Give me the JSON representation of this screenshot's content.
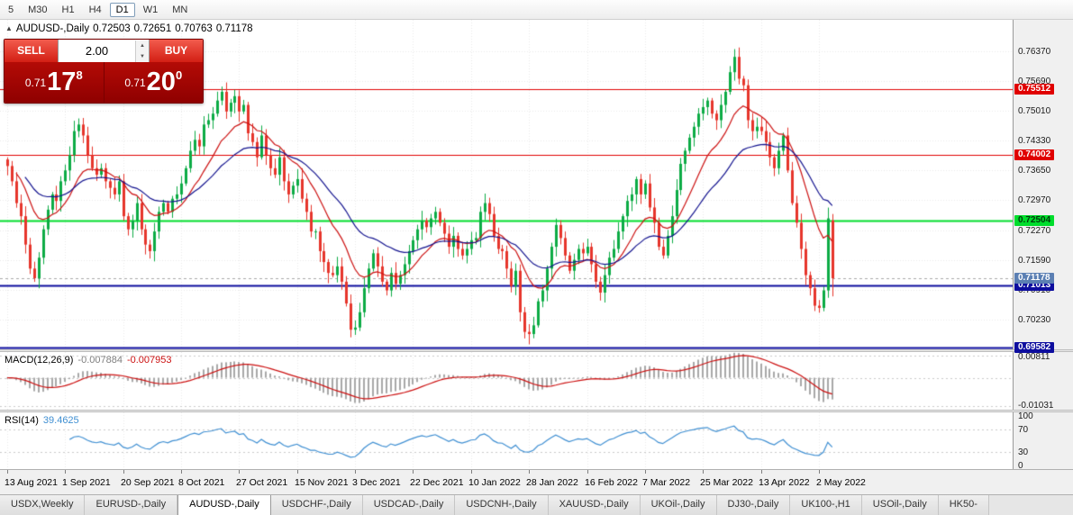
{
  "icons": {
    "collapse": "▲",
    "spin_up": "▲",
    "spin_down": "▼"
  },
  "toolbar": {
    "timeframes": [
      "5",
      "M30",
      "H1",
      "H4",
      "D1",
      "W1",
      "MN"
    ],
    "active": "D1"
  },
  "chart_header": {
    "symbol": "AUDUSD-,Daily",
    "open": "0.72503",
    "high": "0.72651",
    "low": "0.70763",
    "close": "0.71178"
  },
  "trade_panel": {
    "sell_label": "SELL",
    "buy_label": "BUY",
    "volume": "2.00",
    "bid": {
      "prefix": "0.71",
      "big": "17",
      "sup": "8"
    },
    "ask": {
      "prefix": "0.71",
      "big": "20",
      "sup": "0"
    }
  },
  "price_axis": {
    "ticks": [
      {
        "label": "0.76370",
        "value": 0.7637
      },
      {
        "label": "0.75690",
        "value": 0.7569
      },
      {
        "label": "0.75010",
        "value": 0.7501
      },
      {
        "label": "0.74330",
        "value": 0.7433
      },
      {
        "label": "0.73650",
        "value": 0.7365
      },
      {
        "label": "0.72970",
        "value": 0.7297
      },
      {
        "label": "0.72270",
        "value": 0.7227
      },
      {
        "label": "0.71590",
        "value": 0.7159
      },
      {
        "label": "0.70910",
        "value": 0.7091
      },
      {
        "label": "0.70230",
        "value": 0.7023
      }
    ],
    "current_price_marker": {
      "label": "0.71178",
      "value": 0.71178,
      "bg": "#5b7fb3",
      "fg": "#ffffff"
    }
  },
  "macd_pane": {
    "label": "MACD(12,26,9)",
    "value1": "-0.007884",
    "value2": "-0.007953",
    "axis_labels": [
      {
        "label": "0.00811",
        "value": 0.00811
      },
      {
        "label": "-0.01031",
        "value": -0.01031
      }
    ]
  },
  "rsi_pane": {
    "label": "RSI(14)",
    "value": "39.4625",
    "axis_labels": [
      {
        "label": "100",
        "value": 100
      },
      {
        "label": "70",
        "value": 70
      },
      {
        "label": "30",
        "value": 30
      },
      {
        "label": "0",
        "value": 0
      }
    ],
    "levels": [
      70,
      30
    ]
  },
  "date_axis": [
    "13 Aug 2021",
    "1 Sep 2021",
    "20 Sep 2021",
    "8 Oct 2021",
    "27 Oct 2021",
    "15 Nov 2021",
    "3 Dec 2021",
    "22 Dec 2021",
    "10 Jan 2022",
    "28 Jan 2022",
    "16 Feb 2022",
    "7 Mar 2022",
    "25 Mar 2022",
    "13 Apr 2022",
    "2 May 2022"
  ],
  "tabs": {
    "items": [
      "USDX,Weekly",
      "EURUSD-,Daily",
      "AUDUSD-,Daily",
      "USDCHF-,Daily",
      "USDCAD-,Daily",
      "USDCNH-,Daily",
      "XAUUSD-,Daily",
      "UKOil-,Daily",
      "DJ30-,Daily",
      "UK100-,H1",
      "USOil-,Daily",
      "HK50-"
    ],
    "active_index": 2
  },
  "chart_data": {
    "type": "candlestick",
    "symbol": "AUDUSD",
    "timeframe": "Daily",
    "bars_per_label": 13,
    "price_range": [
      0.6955,
      0.771
    ],
    "macd_range": [
      -0.0118,
      0.0095
    ],
    "colors": {
      "up": "#0cab45",
      "down": "#e6352b",
      "ma_fast": "#cc1111",
      "ma_slow": "#12128e",
      "macd_hist": "#a8a8a8",
      "macd_signal": "#cc1111",
      "rsi": "#3f8fd2",
      "grid": "#e9e9e9",
      "bid_line": "#a8a8a8"
    },
    "closes": [
      0.7375,
      0.734,
      0.729,
      0.726,
      0.7195,
      0.714,
      0.7118,
      0.7165,
      0.723,
      0.7275,
      0.731,
      0.7295,
      0.734,
      0.7365,
      0.74,
      0.7455,
      0.747,
      0.7445,
      0.74,
      0.737,
      0.7355,
      0.737,
      0.734,
      0.7325,
      0.731,
      0.734,
      0.726,
      0.723,
      0.725,
      0.729,
      0.723,
      0.7195,
      0.718,
      0.7225,
      0.727,
      0.729,
      0.727,
      0.73,
      0.731,
      0.7335,
      0.737,
      0.741,
      0.7435,
      0.742,
      0.747,
      0.748,
      0.7495,
      0.7525,
      0.7545,
      0.75,
      0.752,
      0.7535,
      0.75,
      0.7515,
      0.745,
      0.743,
      0.7395,
      0.7445,
      0.74,
      0.737,
      0.7355,
      0.7395,
      0.734,
      0.731,
      0.733,
      0.7345,
      0.73,
      0.727,
      0.7225,
      0.7225,
      0.718,
      0.7155,
      0.713,
      0.7125,
      0.7145,
      0.711,
      0.706,
      0.7,
      0.7005,
      0.704,
      0.7095,
      0.714,
      0.7175,
      0.7145,
      0.711,
      0.709,
      0.713,
      0.7105,
      0.7125,
      0.715,
      0.718,
      0.7205,
      0.723,
      0.725,
      0.7235,
      0.7255,
      0.727,
      0.7245,
      0.722,
      0.719,
      0.7215,
      0.7185,
      0.717,
      0.7185,
      0.7205,
      0.721,
      0.727,
      0.729,
      0.7265,
      0.7215,
      0.7185,
      0.718,
      0.714,
      0.71,
      0.7135,
      0.704,
      0.6995,
      0.699,
      0.701,
      0.7065,
      0.709,
      0.714,
      0.719,
      0.724,
      0.721,
      0.717,
      0.7135,
      0.716,
      0.7185,
      0.7175,
      0.719,
      0.715,
      0.711,
      0.7085,
      0.7125,
      0.7165,
      0.7185,
      0.7225,
      0.726,
      0.7295,
      0.731,
      0.7345,
      0.731,
      0.7335,
      0.728,
      0.7245,
      0.719,
      0.717,
      0.7215,
      0.726,
      0.732,
      0.738,
      0.741,
      0.744,
      0.7465,
      0.7495,
      0.751,
      0.7525,
      0.7495,
      0.748,
      0.7515,
      0.7545,
      0.759,
      0.7625,
      0.7575,
      0.756,
      0.748,
      0.7455,
      0.7465,
      0.7455,
      0.743,
      0.7395,
      0.737,
      0.741,
      0.7445,
      0.7365,
      0.729,
      0.7245,
      0.7185,
      0.7125,
      0.7095,
      0.7055,
      0.705,
      0.709,
      0.7255,
      0.71178
    ],
    "last_candle": {
      "open": 0.72503,
      "high": 0.72651,
      "low": 0.70763,
      "close": 0.71178
    },
    "horizontal_lines": [
      {
        "value": 0.75512,
        "color": "#e00000",
        "width": 1,
        "label": "0.75512",
        "badge_bg": "#e00000",
        "badge_fg": "#ffffff"
      },
      {
        "value": 0.74002,
        "color": "#e00000",
        "width": 1,
        "label": "0.74002",
        "badge_bg": "#e00000",
        "badge_fg": "#ffffff"
      },
      {
        "value": 0.72504,
        "color": "#00dd2c",
        "width": 2,
        "label": "0.72504",
        "badge_bg": "#00dd2c",
        "badge_fg": "#00390b"
      },
      {
        "value": 0.71013,
        "color": "#0d0d9e",
        "width": 2,
        "label": "0.71013",
        "badge_bg": "#0d0d9e",
        "badge_fg": "#ffffff"
      },
      {
        "value": 0.69582,
        "color": "#0d0d9e",
        "width": 2,
        "label": "0.69582",
        "badge_bg": "#0d0d9e",
        "badge_fg": "#ffffff"
      }
    ]
  }
}
